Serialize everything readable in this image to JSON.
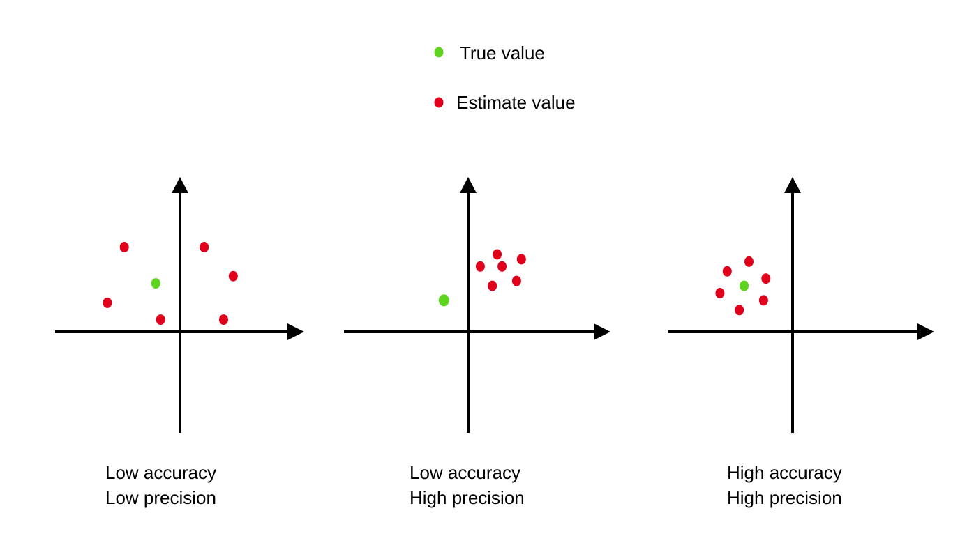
{
  "colors": {
    "true_value": "#5ed41e",
    "estimate_value": "#e0001b",
    "axis": "#000000",
    "background": "#ffffff"
  },
  "legend": {
    "items": [
      {
        "label": "True value",
        "marker": "green-dot"
      },
      {
        "label": "Estimate value",
        "marker": "red-dot"
      }
    ]
  },
  "panels": [
    {
      "caption": [
        "Low accuracy",
        "Low precision"
      ],
      "true_value": [
        -1,
        2
      ],
      "estimates": [
        [
          -2.3,
          3.5
        ],
        [
          1,
          3.5
        ],
        [
          2.2,
          2.3
        ],
        [
          -3,
          1.2
        ],
        [
          -0.8,
          0.5
        ],
        [
          1.8,
          0.5
        ]
      ]
    },
    {
      "caption": [
        "Low accuracy",
        "High precision"
      ],
      "true_value": [
        -1,
        1.3
      ],
      "estimates": [
        [
          1.2,
          3.2
        ],
        [
          2.2,
          3
        ],
        [
          0.5,
          2.7
        ],
        [
          1.4,
          2.7
        ],
        [
          1,
          1.9
        ],
        [
          2,
          2.1
        ]
      ]
    },
    {
      "caption": [
        "High accuracy",
        "High precision"
      ],
      "true_value": [
        -2,
        1.9
      ],
      "estimates": [
        [
          -1.8,
          2.9
        ],
        [
          -2.7,
          2.5
        ],
        [
          -1.1,
          2.2
        ],
        [
          -3,
          1.6
        ],
        [
          -2.2,
          0.9
        ],
        [
          -1.2,
          1.3
        ]
      ]
    }
  ]
}
